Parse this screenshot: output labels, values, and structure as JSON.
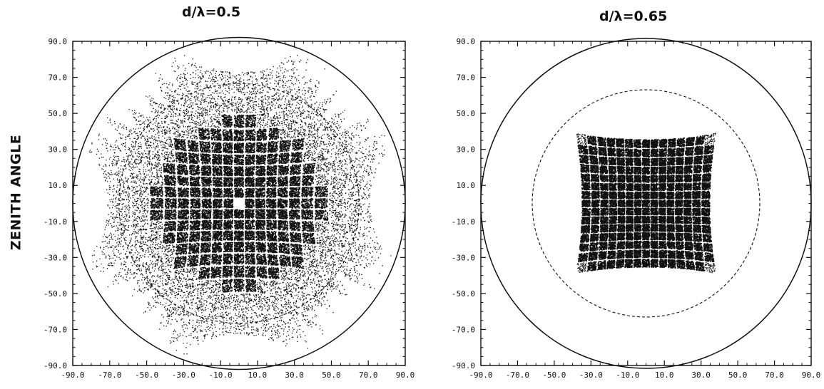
{
  "ylabel": "ZENITH ANGLE",
  "chart_data": [
    {
      "type": "scatter",
      "title": "d/λ=0.5",
      "xlabel": "",
      "ylabel": "ZENITH ANGLE",
      "xlim": [
        -90,
        90
      ],
      "ylim": [
        -90,
        90
      ],
      "x_ticks": [
        "-90.0",
        "-70.0",
        "-50.0",
        "-30.0",
        "-10.0",
        "10.0",
        "30.0",
        "50.0",
        "70.0",
        "90.0"
      ],
      "y_ticks": [
        "90.0",
        "70.0",
        "50.0",
        "30.0",
        "10.0",
        "-10.0",
        "-30.0",
        "-50.0",
        "-70.0",
        "-90.0"
      ],
      "grid": false,
      "outer_circle_radius_deg": 90,
      "dashed_circle_radius_deg": 65,
      "beam_grid": {
        "spacing": 0.1,
        "range": [
          -0.9,
          0.9
        ]
      },
      "marker_color": "#111111"
    },
    {
      "type": "scatter",
      "title": "d/λ=0.65",
      "xlabel": "",
      "ylabel": "",
      "xlim": [
        -90,
        90
      ],
      "ylim": [
        -90,
        90
      ],
      "x_ticks": [
        "-90.0",
        "-70.0",
        "-50.0",
        "-30.0",
        "-10.0",
        "10.0",
        "30.0",
        "50.0",
        "70.0",
        "90.0"
      ],
      "y_ticks": [
        "90.0",
        "70.0",
        "50.0",
        "30.0",
        "10.0",
        "-10.0",
        "-30.0",
        "-50.0",
        "-70.0",
        "-90.0"
      ],
      "grid": false,
      "outer_circle_radius_deg": 90,
      "dashed_circle_radius_deg": 62,
      "beam_grid": {
        "spacing": 0.0769,
        "range": [
          -0.54,
          0.54
        ]
      },
      "marker_color": "#111111"
    }
  ]
}
